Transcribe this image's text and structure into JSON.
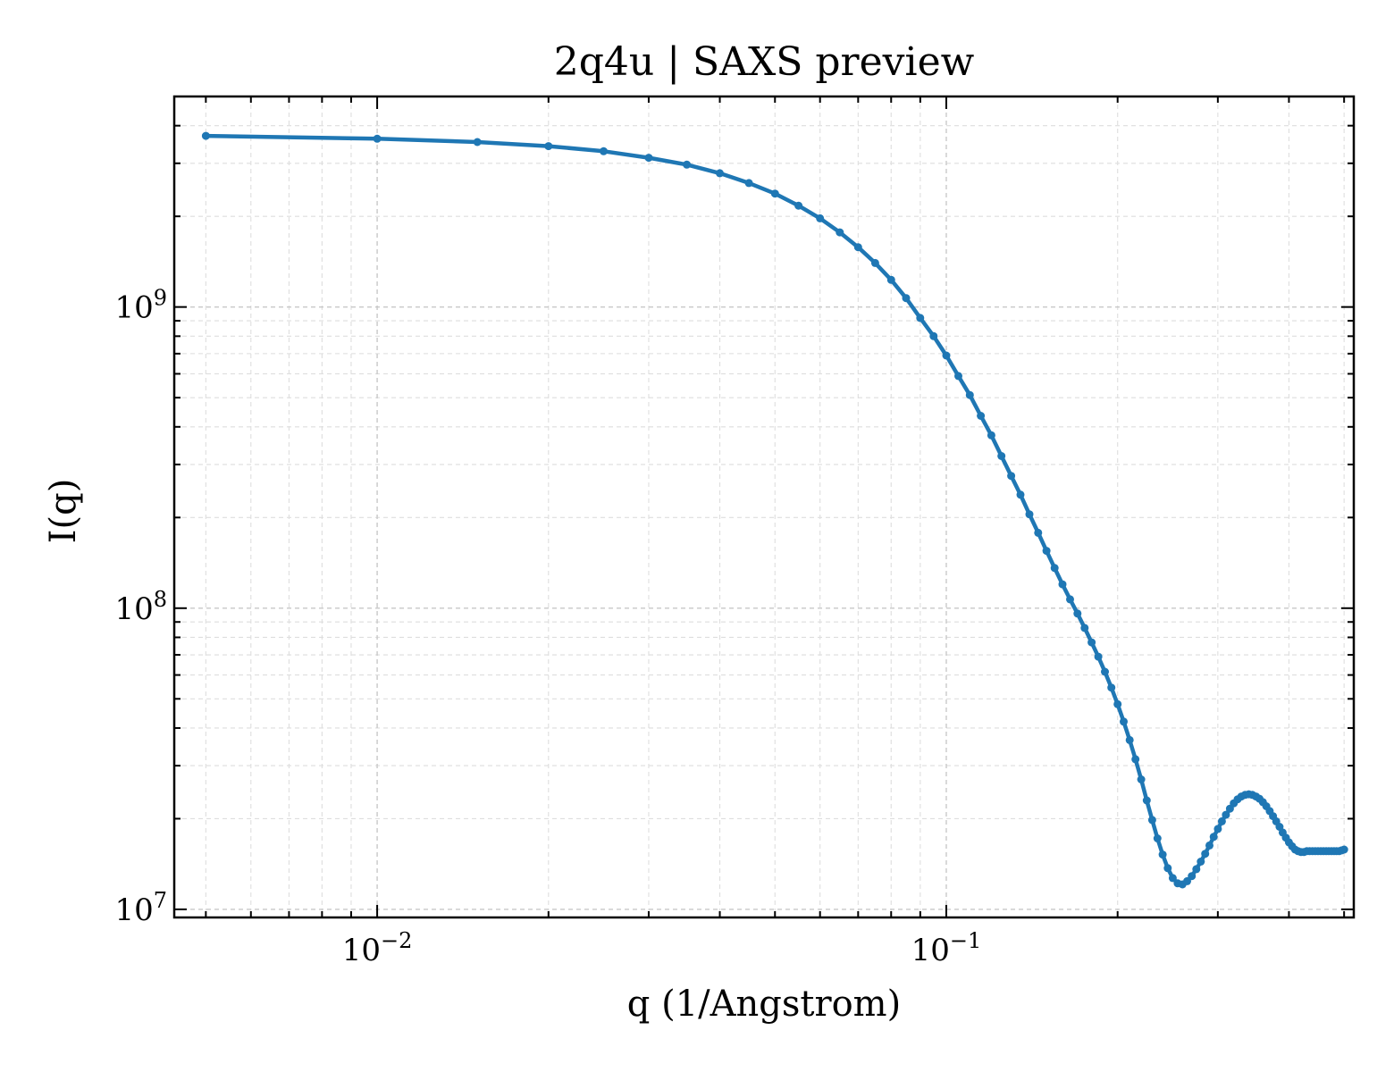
{
  "chart_data": {
    "type": "line",
    "title": "2q4u | SAXS preview",
    "xlabel": "q (1/Angstrom)",
    "ylabel": "I(q)",
    "xscale": "log",
    "yscale": "log",
    "xlim": [
      0.0044,
      0.52
    ],
    "ylim": [
      9400000.0,
      5000000000.0
    ],
    "grid": true,
    "grid_style": "dashed, major and minor",
    "line_color": "#1f77b4",
    "marker": "small dots",
    "x_ticks": [
      {
        "value": 0.01,
        "base": "10",
        "exp": "−2"
      },
      {
        "value": 0.1,
        "base": "10",
        "exp": "−1"
      }
    ],
    "y_ticks": [
      {
        "value": 10000000.0,
        "base": "10",
        "exp": "7"
      },
      {
        "value": 100000000.0,
        "base": "10",
        "exp": "8"
      },
      {
        "value": 1000000000.0,
        "base": "10",
        "exp": "9"
      }
    ],
    "series": [
      {
        "x": [
          0.005,
          0.01,
          0.015,
          0.02,
          0.025,
          0.03,
          0.035,
          0.04,
          0.045,
          0.05,
          0.055,
          0.06,
          0.065,
          0.07,
          0.075,
          0.08,
          0.085,
          0.09,
          0.095,
          0.1,
          0.105,
          0.11,
          0.115,
          0.12,
          0.125,
          0.13,
          0.135,
          0.14,
          0.145,
          0.15,
          0.155,
          0.16,
          0.165,
          0.17,
          0.175,
          0.18,
          0.185,
          0.19,
          0.195,
          0.2,
          0.205,
          0.21,
          0.215,
          0.22,
          0.225,
          0.23,
          0.235,
          0.24,
          0.245,
          0.25,
          0.255,
          0.26,
          0.265,
          0.27,
          0.275,
          0.28,
          0.285,
          0.29,
          0.295,
          0.3,
          0.305,
          0.31,
          0.315,
          0.32,
          0.325,
          0.33,
          0.335,
          0.34,
          0.345,
          0.35,
          0.355,
          0.36,
          0.365,
          0.37,
          0.375,
          0.38,
          0.385,
          0.39,
          0.395,
          0.4,
          0.405,
          0.41,
          0.415,
          0.42,
          0.425,
          0.43,
          0.435,
          0.44,
          0.445,
          0.45,
          0.455,
          0.46,
          0.465,
          0.47,
          0.475,
          0.48,
          0.485,
          0.49,
          0.495,
          0.5
        ],
        "y": [
          3700000000.0,
          3620000000.0,
          3530000000.0,
          3420000000.0,
          3290000000.0,
          3130000000.0,
          2970000000.0,
          2780000000.0,
          2580000000.0,
          2380000000.0,
          2170000000.0,
          1970000000.0,
          1770000000.0,
          1580000000.0,
          1400000000.0,
          1230000000.0,
          1070000000.0,
          920000000.0,
          800000000.0,
          690000000.0,
          590000000.0,
          510000000.0,
          435000000.0,
          375000000.0,
          320000000.0,
          275000000.0,
          238000000.0,
          205000000.0,
          178000000.0,
          155000000.0,
          136000000.0,
          120000000.0,
          107000000.0,
          96000000.0,
          86000000.0,
          77000000.0,
          69000000.0,
          61500000.0,
          54500000.0,
          48000000.0,
          42000000.0,
          36500000.0,
          31500000.0,
          27000000.0,
          23000000.0,
          19800000.0,
          17200000.0,
          15200000.0,
          13700000.0,
          12700000.0,
          12200000.0,
          12100000.0,
          12400000.0,
          12900000.0,
          13600000.0,
          14400000.0,
          15300000.0,
          16300000.0,
          17400000.0,
          18500000.0,
          19600000.0,
          20600000.0,
          21600000.0,
          22500000.0,
          23200000.0,
          23700000.0,
          24000000.0,
          24100000.0,
          24000000.0,
          23700000.0,
          23300000.0,
          22700000.0,
          22000000.0,
          21200000.0,
          20400000.0,
          19600000.0,
          18800000.0,
          18000000.0,
          17300000.0,
          16700000.0,
          16200000.0,
          15800000.0,
          15600000.0,
          15500000.0,
          15500000.0,
          15600000.0,
          15600000.0,
          15600000.0,
          15600000.0,
          15600000.0,
          15600000.0,
          15600000.0,
          15600000.0,
          15600000.0,
          15600000.0,
          15600000.0,
          15600000.0,
          15600000.0,
          15700000.0,
          15800000.0
        ]
      }
    ]
  }
}
